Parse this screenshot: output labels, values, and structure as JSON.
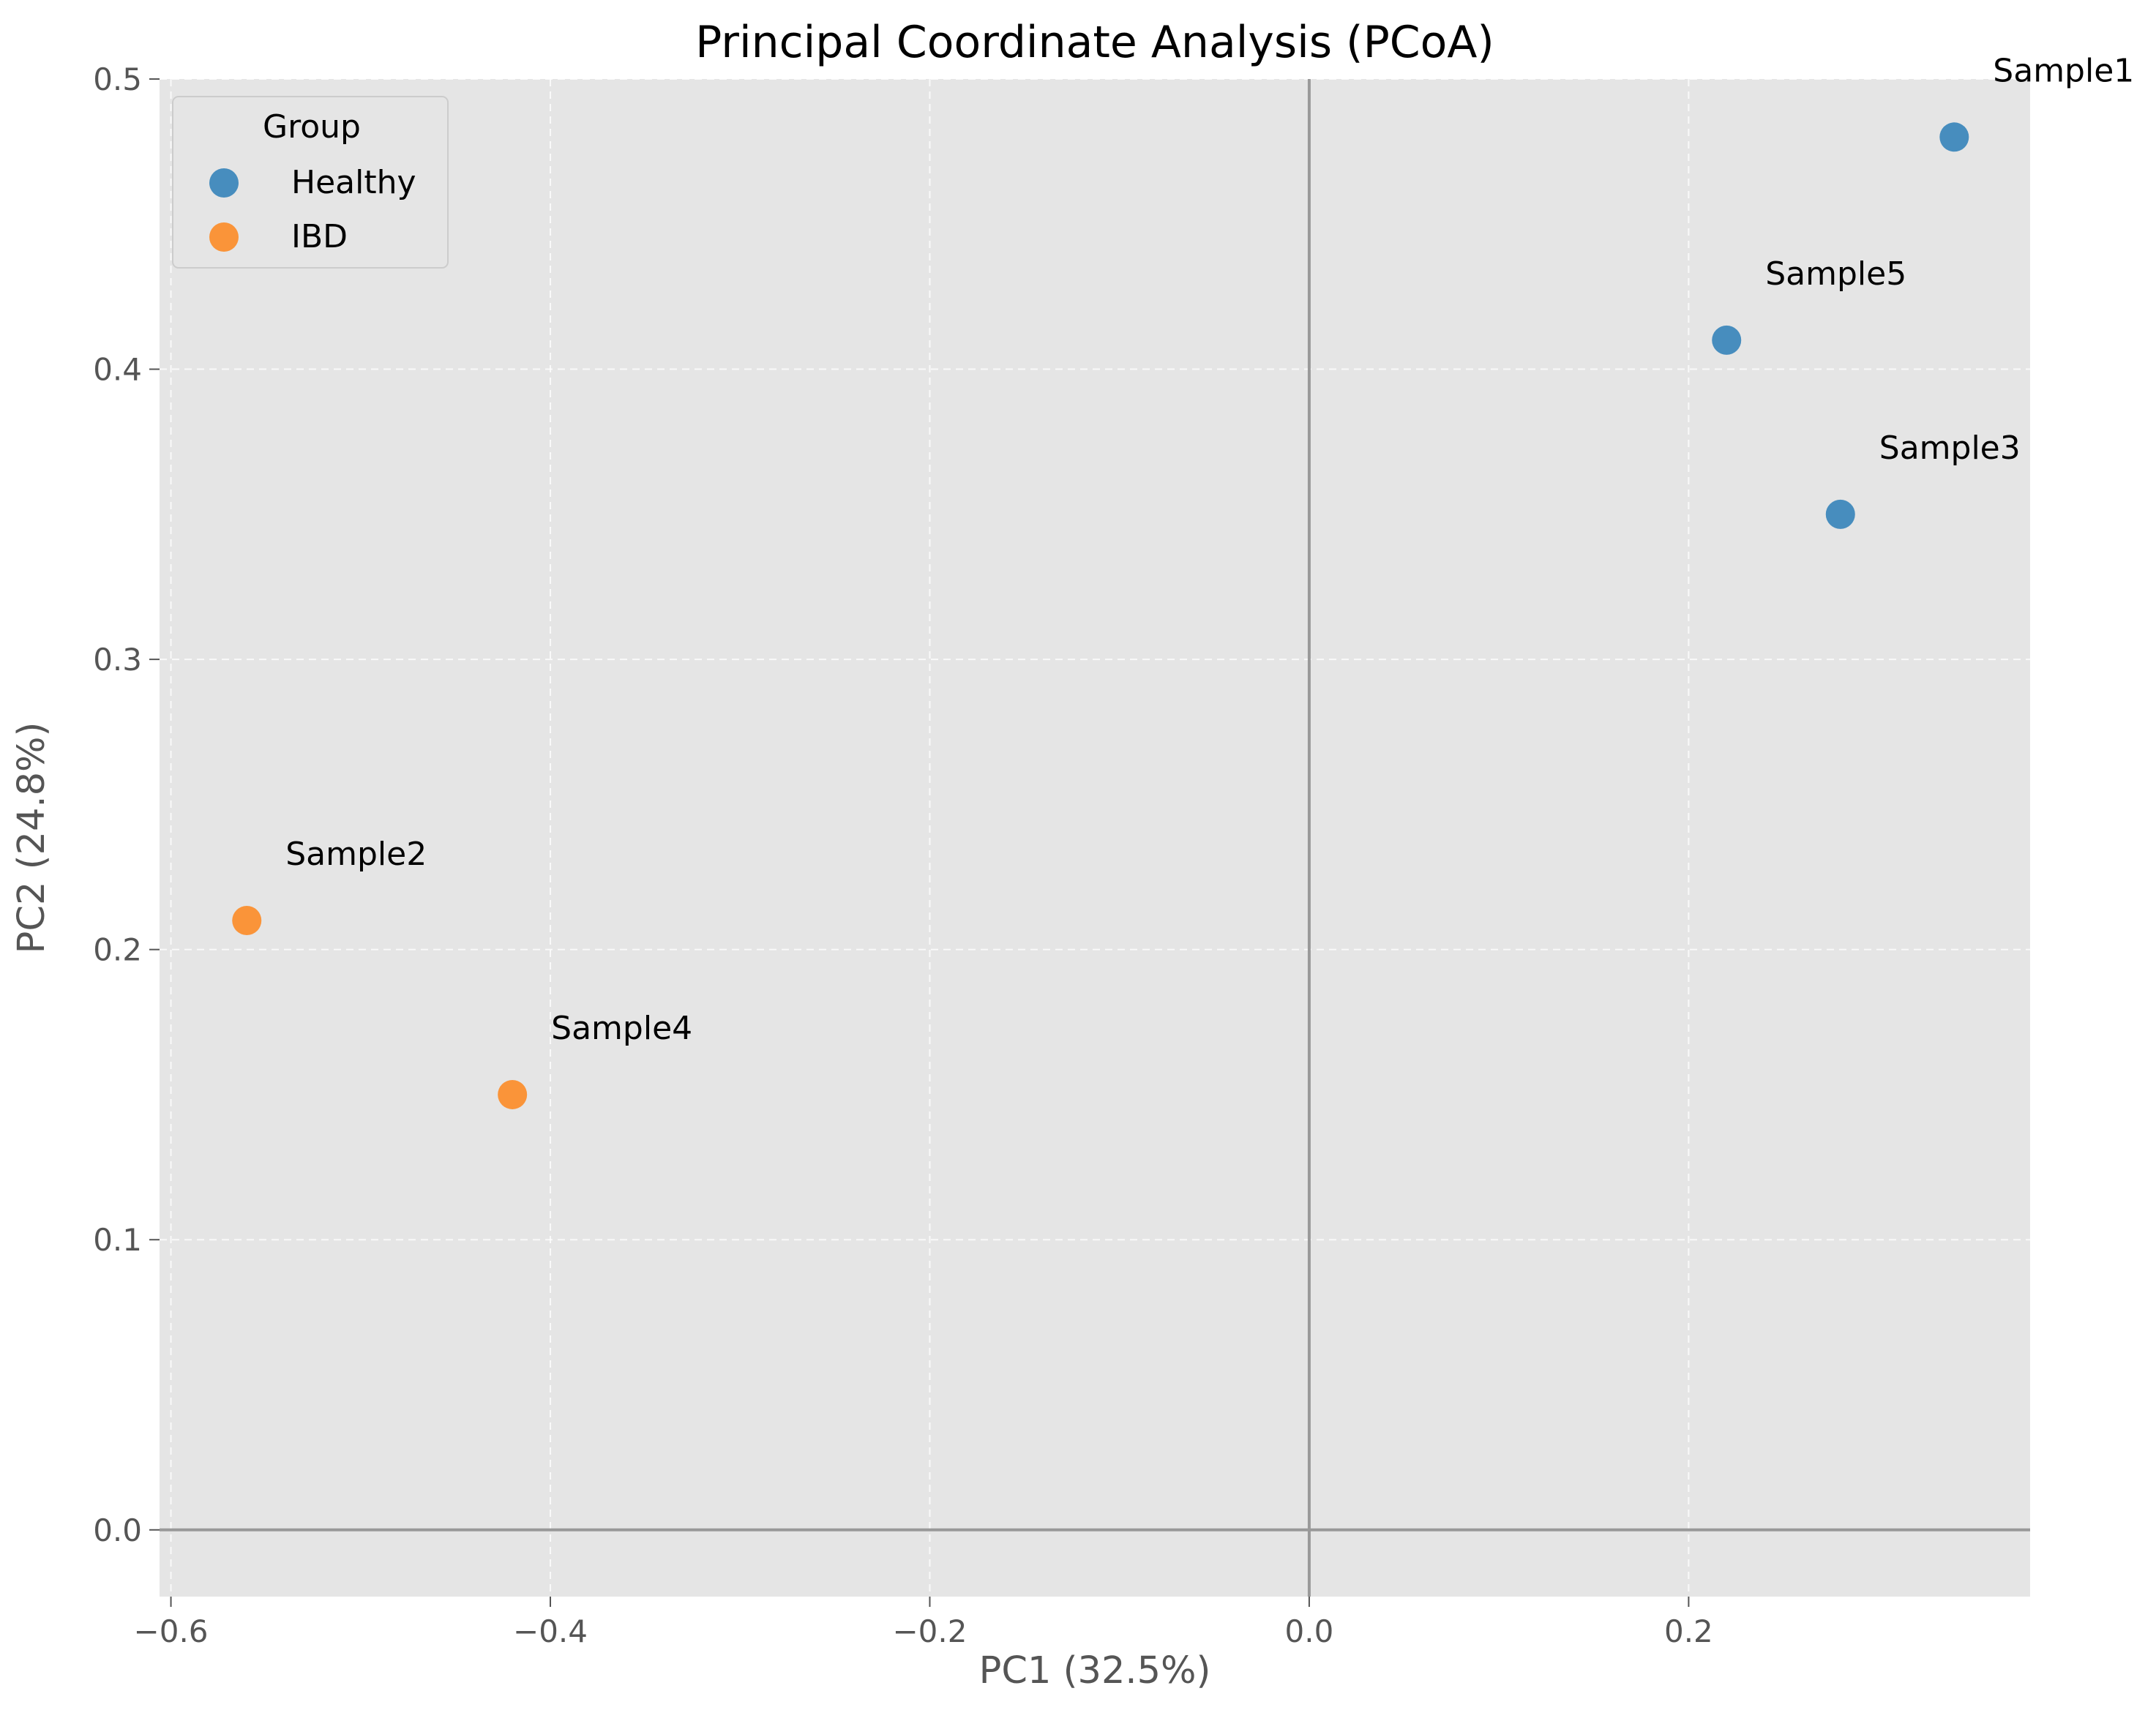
{
  "chart_data": {
    "type": "scatter",
    "title": "Principal Coordinate Analysis (PCoA)",
    "xlabel": "PC1 (32.5%)",
    "ylabel": "PC2 (24.8%)",
    "xlim": [
      -0.606,
      0.38
    ],
    "ylim": [
      -0.023,
      0.5
    ],
    "x_ticks": [
      -0.6,
      -0.4,
      -0.2,
      0.0,
      0.2
    ],
    "x_tick_labels": [
      "−0.6",
      "−0.4",
      "−0.2",
      "0.0",
      "0.2"
    ],
    "y_ticks": [
      0.0,
      0.1,
      0.2,
      0.3,
      0.4,
      0.5
    ],
    "y_tick_labels": [
      "0.0",
      "0.1",
      "0.2",
      "0.3",
      "0.4",
      "0.5"
    ],
    "grid": true,
    "reference_lines": {
      "x": 0.0,
      "y": 0.0
    },
    "legend": {
      "title": "Group",
      "placement": "top-left"
    },
    "series": [
      {
        "name": "Healthy",
        "color": "#1f77b4",
        "points": [
          {
            "label": "Sample1",
            "x": 0.34,
            "y": 0.48
          },
          {
            "label": "Sample5",
            "x": 0.22,
            "y": 0.41
          },
          {
            "label": "Sample3",
            "x": 0.28,
            "y": 0.35
          }
        ]
      },
      {
        "name": "IBD",
        "color": "#ff7f0e",
        "points": [
          {
            "label": "Sample2",
            "x": -0.56,
            "y": 0.21
          },
          {
            "label": "Sample4",
            "x": -0.42,
            "y": 0.15
          }
        ]
      }
    ]
  }
}
